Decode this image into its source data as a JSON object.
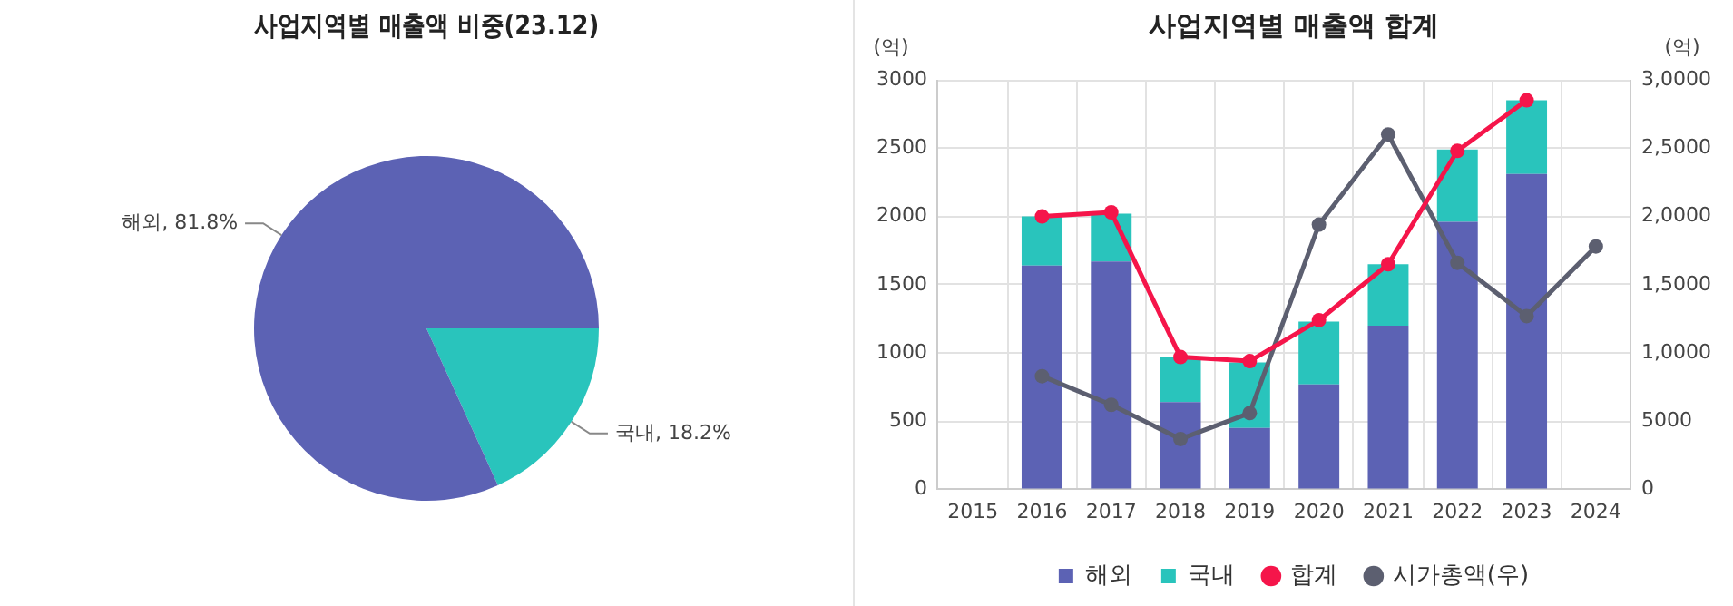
{
  "chart_data": [
    {
      "type": "pie",
      "title": "사업지역별 매출액 비중(23.12)",
      "categories": [
        "국내",
        "해외"
      ],
      "values": [
        18.2,
        81.8
      ],
      "colors": [
        "#29c4bc",
        "#5c62b4"
      ],
      "value_labels": [
        "18.2%",
        "81.8%"
      ]
    },
    {
      "type": "bar",
      "title": "사업지역별 매출액 합계",
      "stacked": true,
      "categories": [
        "2015",
        "2016",
        "2017",
        "2018",
        "2019",
        "2020",
        "2021",
        "2022",
        "2023",
        "2024"
      ],
      "series": [
        {
          "name": "해외",
          "type": "bar",
          "color": "#5c62b4",
          "values": [
            null,
            1640,
            1670,
            640,
            450,
            770,
            1200,
            1960,
            2310,
            null
          ]
        },
        {
          "name": "국내",
          "type": "bar",
          "color": "#29c4bc",
          "values": [
            null,
            360,
            350,
            330,
            480,
            460,
            450,
            530,
            540,
            null
          ]
        },
        {
          "name": "합계",
          "type": "line",
          "color": "#f5154a",
          "values": [
            null,
            2000,
            2030,
            970,
            940,
            1240,
            1650,
            2480,
            2850,
            null
          ]
        },
        {
          "name": "시가총액(우)",
          "type": "line",
          "axis": "y2",
          "color": "#5c5f70",
          "values": [
            null,
            8300,
            6200,
            3700,
            5600,
            19400,
            26000,
            16600,
            12700,
            17800
          ]
        }
      ],
      "ylabel": "(억)",
      "y2label": "(억)",
      "ylim": [
        0,
        3000
      ],
      "yticks": [
        0,
        500,
        1000,
        1500,
        2000,
        2500,
        3000
      ],
      "y2lim": [
        0,
        30000
      ],
      "y2ticks": [
        0,
        5000,
        {
          "value": 10000,
          "label": "1,0000"
        },
        {
          "value": 15000,
          "label": "1,5000"
        },
        {
          "value": 20000,
          "label": "2,0000"
        },
        {
          "value": 25000,
          "label": "2,5000"
        },
        {
          "value": 30000,
          "label": "3,0000"
        }
      ],
      "grid": true,
      "legend": "bottom",
      "marker": "circle"
    }
  ]
}
